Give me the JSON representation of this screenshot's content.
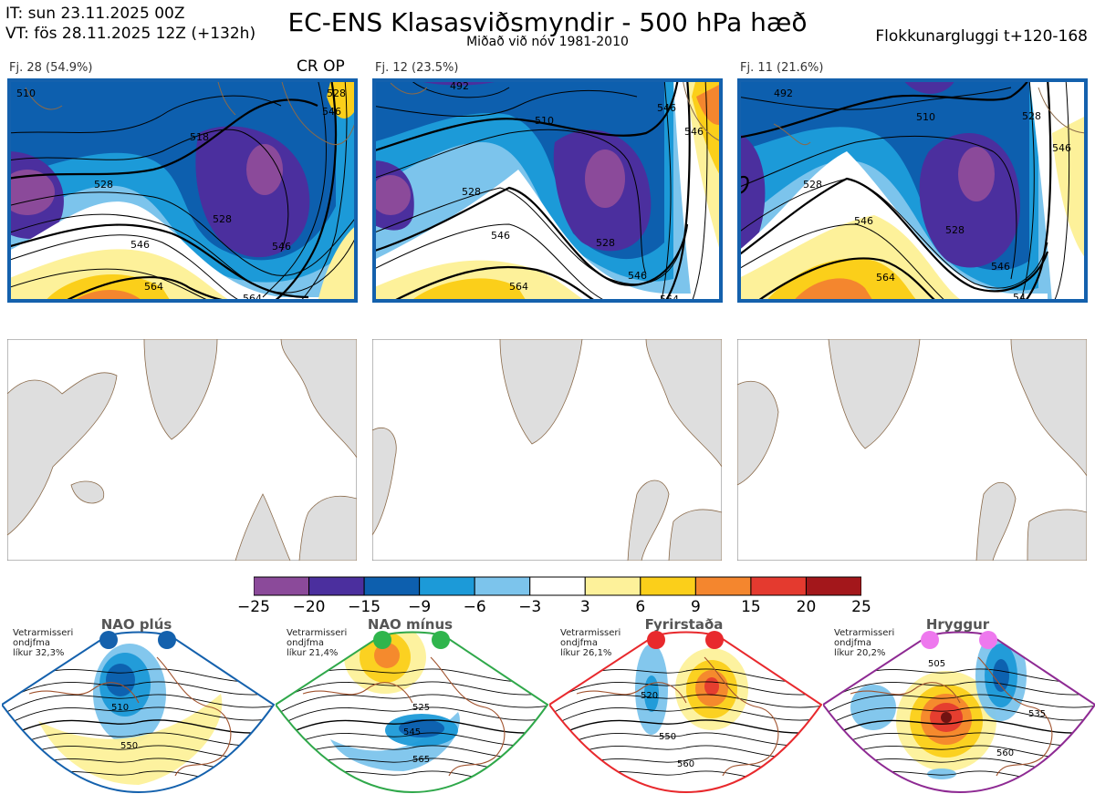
{
  "header": {
    "init_line": "IT: sun 23.11.2025 00Z",
    "valid_line": "VT: fös 28.11.2025 12Z  (+132h)",
    "title": "EC-ENS Klasasviðsmyndir - 500 hPa hæð",
    "subtitle": "Miðað við nóv 1981-2010",
    "window": "Flokkunargluggi t+120-168"
  },
  "panels": [
    {
      "label": "Fj. 28 (54.9%)",
      "extra": "CR OP",
      "contours": [
        "510",
        "518",
        "528",
        "528",
        "546",
        "546",
        "564",
        "564",
        "546",
        "528"
      ]
    },
    {
      "label": "Fj. 12 (23.5%)",
      "extra": "",
      "contours": [
        "492",
        "510",
        "528",
        "546",
        "528",
        "546",
        "546",
        "564",
        "564",
        "546"
      ]
    },
    {
      "label": "Fj. 11 (21.6%)",
      "extra": "",
      "contours": [
        "492",
        "510",
        "528",
        "528",
        "528",
        "546",
        "546",
        "564",
        "546",
        "54"
      ]
    }
  ],
  "colorbar": {
    "ticks": [
      "−25",
      "−20",
      "−15",
      "−9",
      "−6",
      "−3",
      "3",
      "6",
      "9",
      "15",
      "20",
      "25"
    ],
    "colors": [
      "#8b4a9a",
      "#4b2f9e",
      "#0d5fae",
      "#1c9ad8",
      "#7cc4ec",
      "#ffffff",
      "#fdf19a",
      "#fbcf1a",
      "#f4862e",
      "#e43a2f",
      "#a3171b"
    ]
  },
  "regimes": [
    {
      "title": "NAO plús",
      "note": [
        "Vetrarmisseri",
        "ondjfma",
        "líkur 32,3%"
      ],
      "border": "#1461ad",
      "dot": "#1461ad",
      "contours": [
        "510",
        "550"
      ]
    },
    {
      "title": "NAO mínus",
      "note": [
        "Vetrarmisseri",
        "ondjfma",
        "líkur 21,4%"
      ],
      "border": "#2fa84a",
      "dot": "#2fb54c",
      "contours": [
        "525",
        "545",
        "565"
      ]
    },
    {
      "title": "Fyrirstaða",
      "note": [
        "Vetrarmisseri",
        "ondjfma",
        "líkur 26,1%"
      ],
      "border": "#e8292d",
      "dot": "#e8292d",
      "contours": [
        "520",
        "550",
        "560"
      ]
    },
    {
      "title": "Hryggur",
      "note": [
        "Vetrarmisseri",
        "ondjfma",
        "líkur 20,2%"
      ],
      "border": "#8e2a93",
      "dot": "#ee78ee",
      "contours": [
        "505",
        "535",
        "560"
      ]
    }
  ]
}
